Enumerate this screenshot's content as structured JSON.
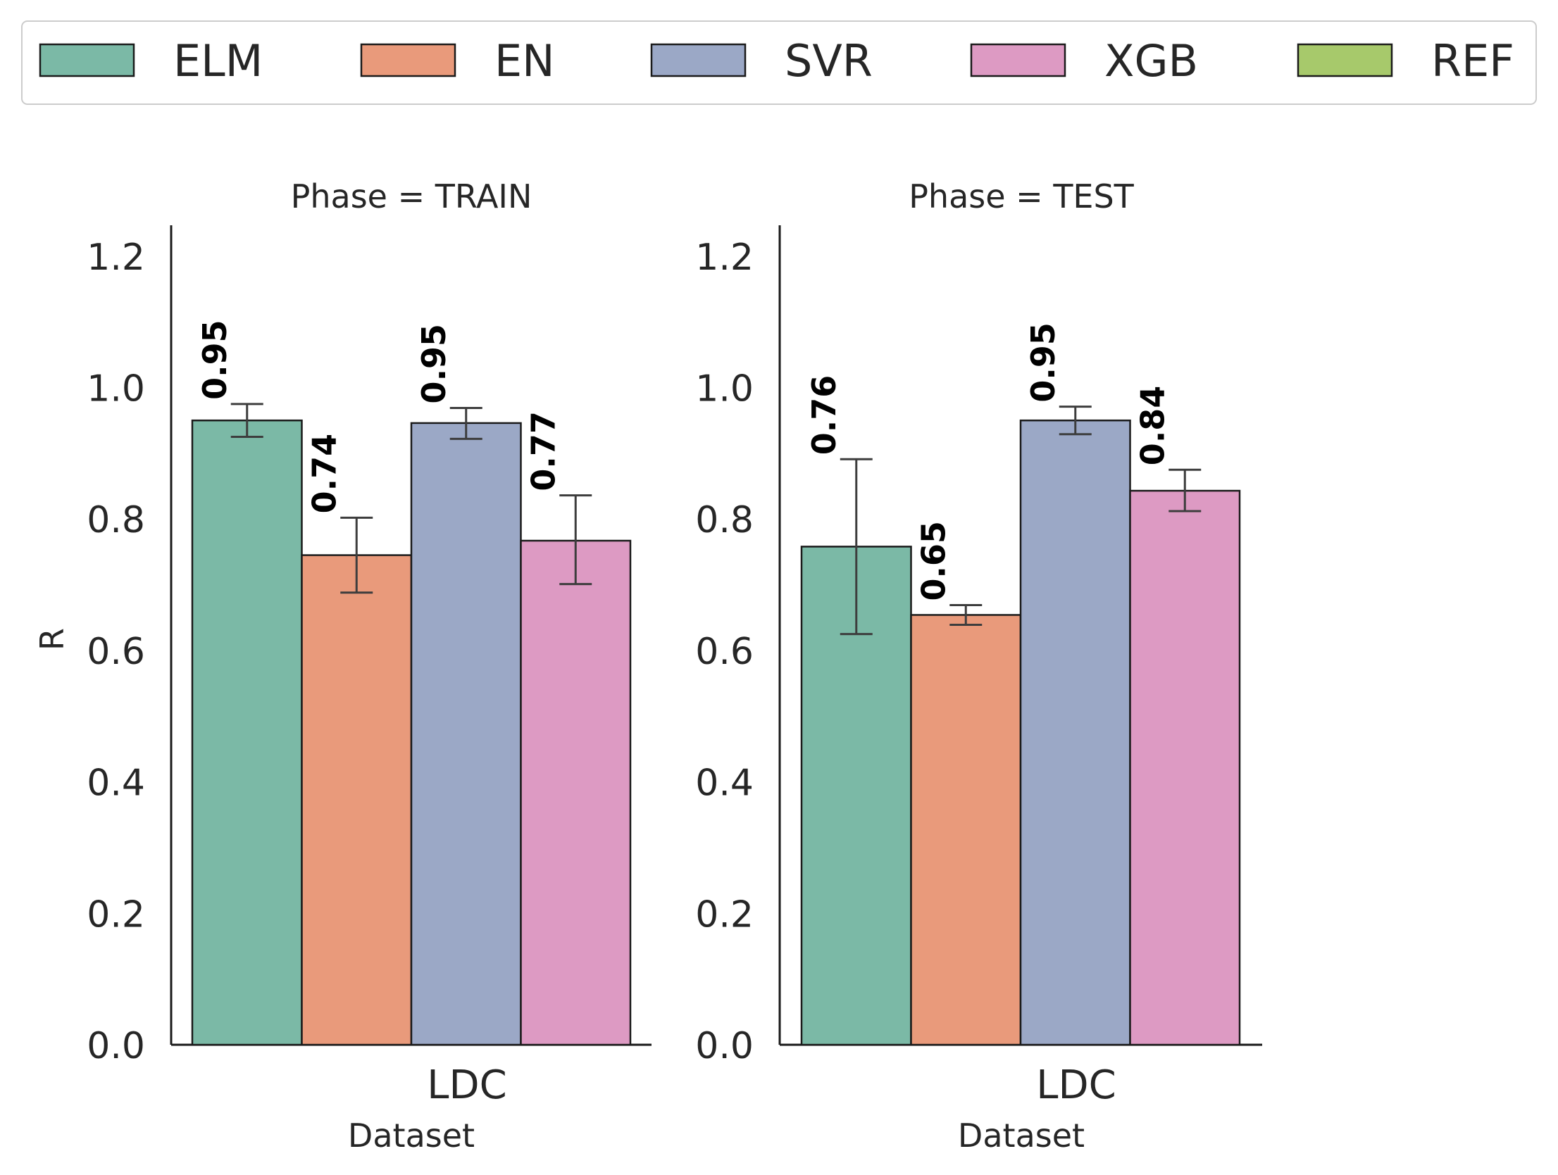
{
  "chart_data": {
    "type": "bar",
    "legend": {
      "placement": "top",
      "entries": [
        {
          "name": "ELM",
          "color": "#7bb9a6"
        },
        {
          "name": "EN",
          "color": "#e99a7b"
        },
        {
          "name": "SVR",
          "color": "#9ba8c6"
        },
        {
          "name": "XGB",
          "color": "#dd9ac3"
        },
        {
          "name": "REF",
          "color": "#a7c96b"
        }
      ]
    },
    "ylabel": "R",
    "xlabel": "Dataset",
    "ylim": [
      0,
      1.24
    ],
    "yticks": [
      "0.0",
      "0.2",
      "0.4",
      "0.6",
      "0.8",
      "1.0",
      "1.2"
    ],
    "grid": false,
    "panels": [
      {
        "title": "Phase = TRAIN",
        "categories": [
          "LDC"
        ],
        "series": [
          {
            "name": "ELM",
            "value": 0.95,
            "label": "0.95",
            "err_low": 0.925,
            "err_high": 0.975
          },
          {
            "name": "EN",
            "value": 0.745,
            "label": "0.74",
            "err_low": 0.688,
            "err_high": 0.802
          },
          {
            "name": "SVR",
            "value": 0.946,
            "label": "0.95",
            "err_low": 0.922,
            "err_high": 0.969
          },
          {
            "name": "XGB",
            "value": 0.767,
            "label": "0.77",
            "err_low": 0.701,
            "err_high": 0.836
          }
        ]
      },
      {
        "title": "Phase = TEST",
        "categories": [
          "LDC"
        ],
        "series": [
          {
            "name": "ELM",
            "value": 0.758,
            "label": "0.76",
            "err_low": 0.625,
            "err_high": 0.891
          },
          {
            "name": "EN",
            "value": 0.654,
            "label": "0.65",
            "err_low": 0.639,
            "err_high": 0.669
          },
          {
            "name": "SVR",
            "value": 0.95,
            "label": "0.95",
            "err_low": 0.929,
            "err_high": 0.971
          },
          {
            "name": "XGB",
            "value": 0.843,
            "label": "0.84",
            "err_low": 0.812,
            "err_high": 0.875
          }
        ]
      }
    ]
  }
}
